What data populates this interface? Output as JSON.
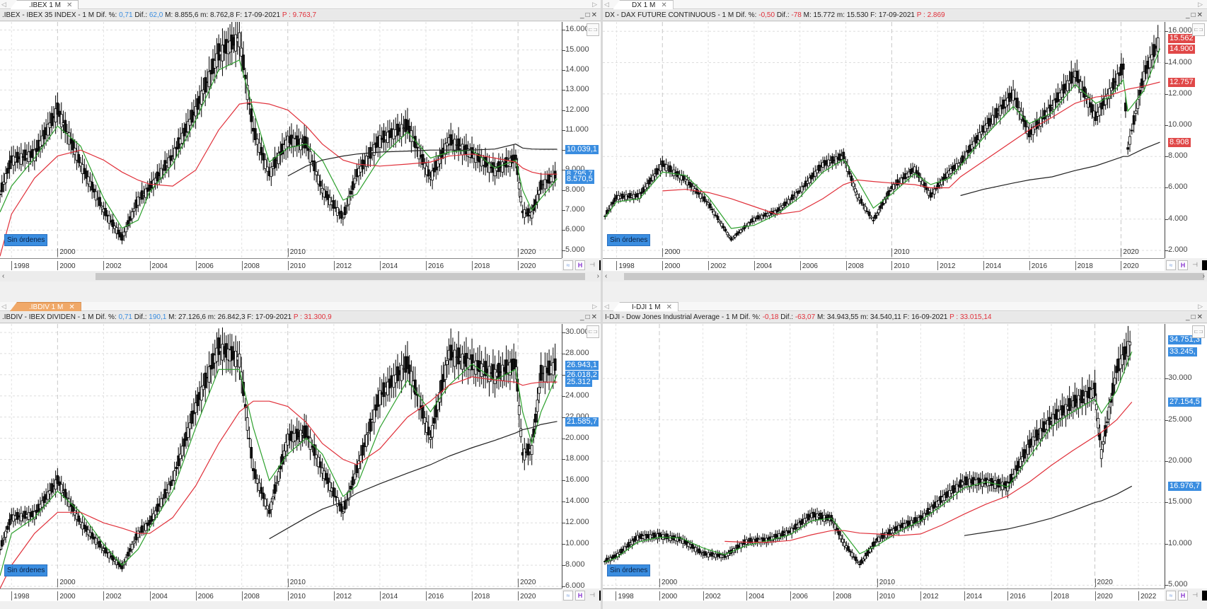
{
  "panes": [
    {
      "id": "ibex",
      "tab": {
        "label": ".IBEX 1 M",
        "active": false
      },
      "header": {
        "symbol": ".IBEX - IBEX 35 INDEX -  1 M",
        "dif_pct_label": "Dif. %:",
        "dif_pct": "0,71",
        "dif_pct_color": "blue",
        "dif_label": "Dif.:",
        "dif": "62,0",
        "dif_color": "blue",
        "max": "M: 8.855,6",
        "min": "m: 8.762,8",
        "date": "F: 17-09-2021",
        "p_label": "P :",
        "p": "9.763,7"
      },
      "orders_label": "Sin órdenes",
      "y_ticks": [
        "16.000",
        "15.000",
        "14.000",
        "13.000",
        "12.000",
        "11.000",
        "10.000",
        "9.000",
        "8.000",
        "7.000",
        "6.000",
        "5.000"
      ],
      "y_range": [
        4600,
        16400
      ],
      "price_labels": [
        {
          "value": "10.039,1",
          "y": 10039,
          "color": "blue"
        },
        {
          "value": "8.795,7",
          "y": 8796,
          "color": "blue"
        },
        {
          "value": "8.570,5",
          "y": 8570,
          "color": "blue"
        }
      ],
      "x_ticks": [
        "1998",
        "2000",
        "2002",
        "2004",
        "2006",
        "2008",
        "2010",
        "2012",
        "2014",
        "2016",
        "2018",
        "2020"
      ],
      "decade_labels": [
        "2000",
        "2010",
        "2020"
      ]
    },
    {
      "id": "dax",
      "tab": {
        "label": "DX 1 M",
        "active": false
      },
      "header": {
        "symbol": "DX - DAX FUTURE CONTINUOUS -  1 M",
        "dif_pct_label": "Dif. %:",
        "dif_pct": "-0,50",
        "dif_pct_color": "red",
        "dif_label": "Dif.:",
        "dif": "-78",
        "dif_color": "red",
        "max": "M: 15.772",
        "min": "m: 15.530",
        "date": "F: 17-09-2021",
        "p_label": "P :",
        "p": "2.869"
      },
      "orders_label": "Sin órdenes",
      "y_ticks": [
        "16.000",
        "14.000",
        "12.000",
        "10.000",
        "8.000",
        "6.000",
        "4.000",
        "2.000"
      ],
      "y_range": [
        1500,
        16600
      ],
      "price_labels": [
        {
          "value": "15.562",
          "y": 15562,
          "color": "red"
        },
        {
          "value": "14.900",
          "y": 14900,
          "color": "red"
        },
        {
          "value": "12.757",
          "y": 12757,
          "color": "red"
        },
        {
          "value": "8.908",
          "y": 8908,
          "color": "red"
        }
      ],
      "x_ticks": [
        "1998",
        "2000",
        "2002",
        "2004",
        "2006",
        "2008",
        "2010",
        "2012",
        "2014",
        "2016",
        "2018",
        "2020"
      ],
      "decade_labels": [
        "2000",
        "2010",
        "2020"
      ]
    },
    {
      "id": "ibdiv",
      "tab": {
        "label": ".IBDIV 1 M",
        "active": true
      },
      "header": {
        "symbol": ".IBDIV - IBEX DIVIDEN -  1 M",
        "dif_pct_label": "Dif. %:",
        "dif_pct": "0,71",
        "dif_pct_color": "blue",
        "dif_label": "Dif.:",
        "dif": "190,1",
        "dif_color": "blue",
        "max": "M: 27.126,6",
        "min": "m: 26.842,3",
        "date": "F: 17-09-2021",
        "p_label": "P :",
        "p": "31.300,9"
      },
      "orders_label": "Sin órdenes",
      "y_ticks": [
        "30.000",
        "28.000",
        "26.000",
        "24.000",
        "22.000",
        "20.000",
        "18.000",
        "16.000",
        "14.000",
        "12.000",
        "10.000",
        "8.000",
        "6.000"
      ],
      "y_range": [
        5800,
        30800
      ],
      "price_labels": [
        {
          "value": "26.943,1",
          "y": 26943,
          "color": "blue"
        },
        {
          "value": "26.018,2",
          "y": 26018,
          "color": "blue"
        },
        {
          "value": "25.312",
          "y": 25312,
          "color": "blue"
        },
        {
          "value": "21.585,7",
          "y": 21586,
          "color": "blue"
        }
      ],
      "x_ticks": [
        "1998",
        "2000",
        "2002",
        "2004",
        "2006",
        "2008",
        "2010",
        "2012",
        "2014",
        "2016",
        "2018",
        "2020"
      ],
      "decade_labels": [
        "2000",
        "2010",
        "2020"
      ]
    },
    {
      "id": "dji",
      "tab": {
        "label": "I-DJI 1 M",
        "active": false
      },
      "header": {
        "symbol": "I-DJI - Dow Jones Industrial Average -  1 M",
        "dif_pct_label": "Dif. %:",
        "dif_pct": "-0,18",
        "dif_pct_color": "red",
        "dif_label": "Dif.:",
        "dif": "-63,07",
        "dif_color": "red",
        "max": "M: 34.943,55",
        "min": "m: 34.540,11",
        "date": "F: 16-09-2021",
        "p_label": "P :",
        "p": "33.015,14"
      },
      "orders_label": "Sin órdenes",
      "y_ticks": [
        "30.000",
        "25.000",
        "20.000",
        "15.000",
        "10.000",
        "5.000"
      ],
      "y_range": [
        4600,
        36600
      ],
      "price_labels": [
        {
          "value": "34.751,3",
          "y": 34751,
          "color": "blue"
        },
        {
          "value": "33.245,",
          "y": 33245,
          "color": "blue"
        },
        {
          "value": "27.154,5",
          "y": 27154,
          "color": "blue"
        },
        {
          "value": "16.976,7",
          "y": 16977,
          "color": "blue"
        }
      ],
      "x_ticks": [
        "1998",
        "2000",
        "2002",
        "2004",
        "2006",
        "2008",
        "2010",
        "2012",
        "2014",
        "2016",
        "2018",
        "2020",
        "2022"
      ],
      "decade_labels": [
        "2000",
        "2010",
        "2020"
      ]
    }
  ],
  "colors": {
    "candle": "#000000",
    "ma_fast": "#2ca02c",
    "ma_mid": "#e0303a",
    "ma_slow": "#222222",
    "label_blue": "#3a8de0",
    "label_red": "#e04848",
    "active_tab": "#f0a868"
  },
  "chart_data": [
    {
      "type": "line",
      "title": ".IBEX - IBEX 35 INDEX - 1 M",
      "xlabel": "",
      "ylabel": "",
      "ylim": [
        4600,
        16400
      ],
      "x": [
        1997.5,
        1998,
        1999,
        2000,
        2001,
        2002,
        2002.8,
        2003.5,
        2004,
        2005,
        2006,
        2007,
        2007.9,
        2008.5,
        2009.2,
        2010,
        2010.8,
        2011.5,
        2012.4,
        2013,
        2014,
        2015.2,
        2016.2,
        2017,
        2018,
        2019,
        2019.9,
        2020.2,
        2020.6,
        2021,
        2021.7
      ],
      "series": [
        {
          "name": "close",
          "values": [
            7800,
            9500,
            9800,
            12000,
            9300,
            7000,
            5600,
            7500,
            8100,
            9700,
            12000,
            14800,
            15600,
            11000,
            8800,
            10500,
            10300,
            8000,
            6600,
            8800,
            10500,
            11200,
            8600,
            10500,
            9800,
            9000,
            9600,
            6900,
            6800,
            8200,
            8800
          ]
        },
        {
          "name": "ma_fast",
          "values": [
            6900,
            8200,
            9600,
            11200,
            10200,
            7600,
            6100,
            6500,
            7900,
            9300,
            11500,
            14000,
            14500,
            12000,
            9400,
            10100,
            10300,
            9500,
            7500,
            7800,
            9600,
            10900,
            9600,
            9900,
            10000,
            9100,
            9500,
            8000,
            7000,
            7600,
            8570
          ]
        },
        {
          "name": "ma_mid",
          "values": [
            4700,
            6800,
            8600,
            9700,
            10000,
            9500,
            8900,
            8500,
            8300,
            8200,
            9000,
            11000,
            12300,
            12400,
            12300,
            12000,
            11200,
            10300,
            9500,
            9300,
            9200,
            9300,
            9400,
            9700,
            9800,
            9600,
            9400,
            9100,
            8900,
            8800,
            8796
          ]
        },
        {
          "name": "ma_slow",
          "values": [
            null,
            null,
            null,
            null,
            null,
            null,
            null,
            null,
            null,
            null,
            null,
            null,
            null,
            null,
            null,
            8700,
            9200,
            9500,
            9700,
            9800,
            9900,
            9950,
            10000,
            10000,
            10000,
            10050,
            10300,
            10100,
            10050,
            10040,
            10039
          ]
        }
      ]
    },
    {
      "type": "line",
      "title": "DX - DAX FUTURE CONTINUOUS - 1 M",
      "xlabel": "",
      "ylabel": "",
      "ylim": [
        1500,
        16600
      ],
      "x": [
        1997.5,
        1998,
        1999,
        2000,
        2001,
        2002,
        2003,
        2004,
        2005,
        2006,
        2007,
        2007.9,
        2008.5,
        2009.2,
        2010,
        2011,
        2011.7,
        2012.5,
        2013,
        2014,
        2015.3,
        2016,
        2017,
        2018,
        2018.9,
        2019.5,
        2020.1,
        2020.3,
        2021,
        2021.7
      ],
      "series": [
        {
          "name": "close",
          "values": [
            4200,
            5400,
            5500,
            7500,
            6500,
            5000,
            2700,
            4000,
            4500,
            5800,
            7500,
            8000,
            5500,
            3900,
            6000,
            7200,
            5500,
            7000,
            7600,
            9700,
            12000,
            9400,
            11200,
            13300,
            10500,
            12100,
            13700,
            8500,
            13200,
            15562
          ]
        },
        {
          "name": "ma_fast",
          "values": [
            4100,
            5100,
            5300,
            7000,
            6800,
            5400,
            3400,
            3600,
            4300,
            5400,
            7000,
            7800,
            6500,
            4700,
            5600,
            6900,
            6200,
            6600,
            7400,
            9200,
            11200,
            10100,
            10800,
            12600,
            11400,
            11800,
            12900,
            10900,
            12200,
            14900
          ]
        },
        {
          "name": "ma_mid",
          "values": [
            null,
            null,
            null,
            5800,
            5900,
            5700,
            5300,
            4800,
            4300,
            4500,
            5300,
            6200,
            6500,
            6400,
            6300,
            6200,
            6000,
            6000,
            6700,
            7700,
            9000,
            9700,
            10500,
            11400,
            11800,
            11900,
            12200,
            12300,
            12500,
            12757
          ]
        },
        {
          "name": "ma_slow",
          "values": [
            null,
            null,
            null,
            null,
            null,
            null,
            null,
            null,
            null,
            null,
            null,
            null,
            null,
            null,
            null,
            null,
            null,
            null,
            5500,
            5900,
            6300,
            6500,
            6700,
            7100,
            7400,
            7700,
            8000,
            8000,
            8500,
            8908
          ]
        }
      ]
    },
    {
      "type": "line",
      "title": ".IBDIV - IBEX DIVIDEN - 1 M",
      "xlabel": "",
      "ylabel": "",
      "ylim": [
        5800,
        30800
      ],
      "x": [
        1997.5,
        1998,
        1999,
        2000,
        2001,
        2002,
        2002.8,
        2003.5,
        2004,
        2005,
        2006,
        2007,
        2007.9,
        2008.5,
        2009.2,
        2010,
        2010.8,
        2011.5,
        2012.4,
        2013,
        2014,
        2015.2,
        2016.2,
        2017,
        2018,
        2019,
        2019.9,
        2020.2,
        2020.6,
        2021,
        2021.7
      ],
      "series": [
        {
          "name": "close",
          "values": [
            9500,
            12500,
            12800,
            16000,
            12000,
            9500,
            7800,
            11000,
            12000,
            16000,
            23000,
            28500,
            27500,
            17000,
            13000,
            20000,
            20500,
            17000,
            13000,
            17000,
            24000,
            27000,
            20000,
            28000,
            27000,
            26000,
            27000,
            18500,
            19000,
            26000,
            26943
          ]
        },
        {
          "name": "ma_fast",
          "values": [
            7000,
            11000,
            12500,
            15000,
            13000,
            10000,
            8000,
            9500,
            11500,
            15000,
            21000,
            26500,
            26500,
            21000,
            16000,
            18500,
            20000,
            18500,
            14500,
            15500,
            21000,
            25500,
            22500,
            25000,
            27000,
            25500,
            26500,
            22500,
            19500,
            22500,
            26018
          ]
        },
        {
          "name": "ma_mid",
          "values": [
            5800,
            8000,
            11000,
            13000,
            13000,
            12000,
            11500,
            11000,
            11000,
            12500,
            15500,
            19500,
            22500,
            23500,
            23500,
            23000,
            21500,
            19500,
            18000,
            17500,
            19000,
            22000,
            23500,
            25000,
            25800,
            25500,
            25300,
            25000,
            25200,
            25300,
            25312
          ]
        },
        {
          "name": "ma_slow",
          "values": [
            null,
            null,
            null,
            null,
            null,
            null,
            null,
            null,
            null,
            null,
            null,
            null,
            null,
            null,
            10500,
            11500,
            12500,
            13300,
            14000,
            14800,
            15700,
            16700,
            17500,
            18300,
            19100,
            19800,
            20500,
            20800,
            21000,
            21300,
            21586
          ]
        }
      ]
    },
    {
      "type": "line",
      "title": "I-DJI - Dow Jones Industrial Average - 1 M",
      "xlabel": "",
      "ylabel": "",
      "ylim": [
        4600,
        36600
      ],
      "x": [
        1997.5,
        1998,
        1999,
        2000,
        2001,
        2002,
        2003,
        2004,
        2005,
        2006,
        2007,
        2007.9,
        2008.5,
        2009.2,
        2010,
        2011,
        2012,
        2013,
        2014,
        2015,
        2016,
        2017,
        2018,
        2019,
        2020,
        2020.3,
        2021,
        2021.7
      ],
      "series": [
        {
          "name": "close",
          "values": [
            7900,
            8500,
            10800,
            11000,
            10500,
            8800,
            8500,
            10300,
            10500,
            11500,
            13500,
            13000,
            10000,
            7500,
            10500,
            12000,
            13000,
            15500,
            17500,
            17500,
            17000,
            22000,
            25000,
            27000,
            28500,
            21000,
            31000,
            34751
          ]
        },
        {
          "name": "ma_fast",
          "values": [
            7800,
            8300,
            10200,
            10800,
            10700,
            9500,
            8700,
            9800,
            10400,
            11100,
            12800,
            13100,
            11200,
            8800,
            9800,
            11500,
            12800,
            14700,
            16800,
            17500,
            16900,
            20500,
            24200,
            26000,
            27500,
            25800,
            28500,
            33245
          ]
        },
        {
          "name": "ma_mid",
          "values": [
            null,
            null,
            null,
            null,
            null,
            null,
            10300,
            10200,
            10200,
            10400,
            11100,
            11600,
            11600,
            11300,
            11200,
            11000,
            11200,
            12300,
            13600,
            14800,
            15800,
            17500,
            19500,
            21300,
            23000,
            23500,
            25000,
            27154
          ]
        },
        {
          "name": "ma_slow",
          "values": [
            null,
            null,
            null,
            null,
            null,
            null,
            null,
            null,
            null,
            null,
            null,
            null,
            null,
            null,
            null,
            null,
            null,
            null,
            11000,
            11400,
            11800,
            12400,
            13100,
            14000,
            15000,
            15200,
            16000,
            16977
          ]
        }
      ]
    }
  ]
}
